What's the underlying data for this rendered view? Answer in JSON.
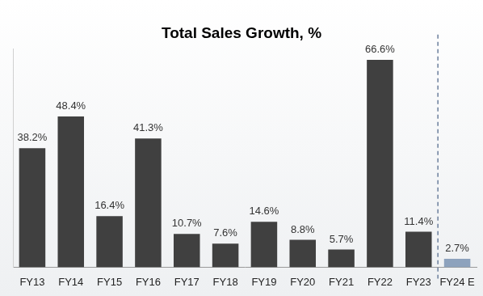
{
  "chart_data": {
    "type": "bar",
    "title": "Total Sales Growth, %",
    "categories": [
      "FY13",
      "FY14",
      "FY15",
      "FY16",
      "FY17",
      "FY18",
      "FY19",
      "FY20",
      "FY21",
      "FY22",
      "FY23",
      "FY24 E"
    ],
    "values": [
      38.2,
      48.4,
      16.4,
      41.3,
      10.7,
      7.6,
      14.6,
      8.8,
      5.7,
      66.6,
      11.4,
      2.7
    ],
    "value_labels": [
      "38.2%",
      "48.4%",
      "16.4%",
      "41.3%",
      "10.7%",
      "7.6%",
      "14.6%",
      "8.8%",
      "5.7%",
      "66.6%",
      "11.4%",
      "2.7%"
    ],
    "colors": [
      "#404040",
      "#404040",
      "#404040",
      "#404040",
      "#404040",
      "#404040",
      "#404040",
      "#404040",
      "#404040",
      "#404040",
      "#404040",
      "#8da2bd"
    ],
    "ylim": [
      0,
      70
    ],
    "data_labels": true,
    "tick_labels": "x",
    "grid": false
  }
}
